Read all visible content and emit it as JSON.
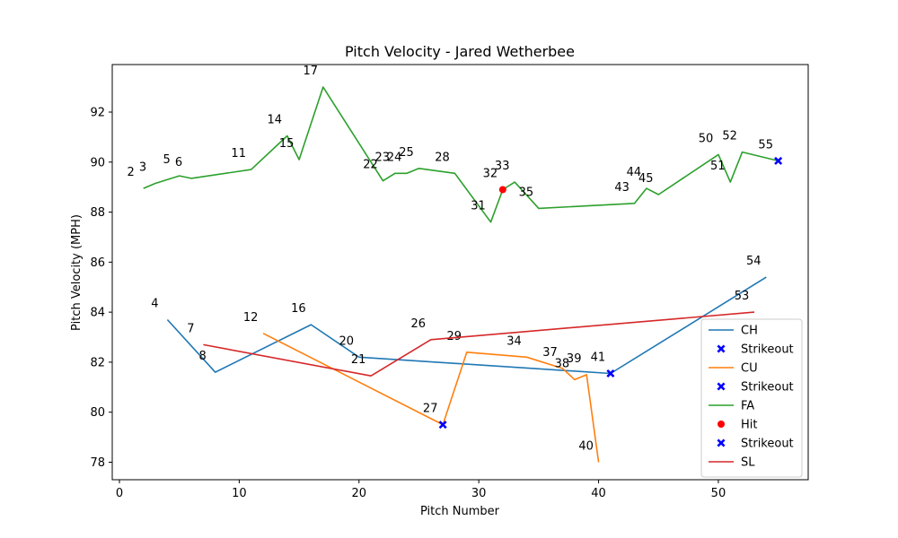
{
  "chart_data": {
    "type": "line",
    "title": "Pitch Velocity - Jared Wetherbee",
    "xlabel": "Pitch Number",
    "ylabel": "Pitch Velocity (MPH)",
    "xlim": [
      -0.6,
      57.5
    ],
    "ylim": [
      77.3,
      93.9
    ],
    "xticks": [
      0,
      10,
      20,
      30,
      40,
      50
    ],
    "yticks": [
      78,
      80,
      82,
      84,
      86,
      88,
      90,
      92
    ],
    "grid": false,
    "legend_position": "lower right",
    "series": [
      {
        "name": "CH",
        "color": "#1f77b4",
        "x": [
          4,
          8,
          16,
          20,
          41,
          54
        ],
        "y": [
          83.7,
          81.6,
          83.5,
          82.2,
          81.55,
          85.4
        ],
        "labels": [
          "4",
          "8",
          "16",
          "20",
          "41",
          "54"
        ]
      },
      {
        "name": "CU",
        "color": "#ff7f0e",
        "x": [
          12,
          27,
          29,
          34,
          37,
          38,
          39,
          40
        ],
        "y": [
          83.15,
          79.5,
          82.4,
          82.2,
          81.75,
          81.3,
          81.5,
          78.0
        ],
        "labels": [
          "12",
          "27",
          "29",
          "34",
          "37",
          "38",
          "39",
          "40"
        ]
      },
      {
        "name": "FA",
        "color": "#2ca02c",
        "x": [
          2,
          3,
          5,
          6,
          11,
          14,
          15,
          17,
          22,
          23,
          24,
          25,
          28,
          31,
          32,
          33,
          35,
          43,
          44,
          45,
          50,
          51,
          52,
          55
        ],
        "y": [
          88.95,
          89.15,
          89.45,
          89.35,
          89.7,
          91.05,
          90.1,
          93.0,
          89.25,
          89.55,
          89.55,
          89.75,
          89.55,
          87.6,
          88.9,
          89.2,
          88.15,
          88.35,
          88.95,
          88.7,
          90.3,
          89.2,
          90.4,
          90.05
        ],
        "labels": [
          "2",
          "3",
          "5",
          "6",
          "11",
          "14",
          "15",
          "17",
          "22",
          "23",
          "24",
          "25",
          "28",
          "31",
          "32",
          "33",
          "35",
          "43",
          "44",
          "45",
          "50",
          "51",
          "52",
          "55"
        ]
      },
      {
        "name": "SL",
        "color": "#d62728",
        "x": [
          7,
          21,
          26,
          53
        ],
        "y": [
          82.7,
          81.45,
          82.9,
          84.0
        ],
        "labels": [
          "7",
          "21",
          "26",
          "53"
        ]
      }
    ],
    "markers": [
      {
        "name": "Strikeout",
        "shape": "x",
        "color": "#0000ff",
        "x": 41,
        "y": 81.55
      },
      {
        "name": "Strikeout",
        "shape": "x",
        "color": "#0000ff",
        "x": 27,
        "y": 79.5
      },
      {
        "name": "Hit",
        "shape": "circle",
        "color": "#ff0000",
        "x": 32,
        "y": 88.9
      },
      {
        "name": "Strikeout",
        "shape": "x",
        "color": "#0000ff",
        "x": 55,
        "y": 90.05
      }
    ],
    "legend": [
      {
        "label": "CH",
        "kind": "line",
        "color": "#1f77b4"
      },
      {
        "label": "Strikeout",
        "kind": "x",
        "color": "#0000ff"
      },
      {
        "label": "CU",
        "kind": "line",
        "color": "#ff7f0e"
      },
      {
        "label": "Strikeout",
        "kind": "x",
        "color": "#0000ff"
      },
      {
        "label": "FA",
        "kind": "line",
        "color": "#2ca02c"
      },
      {
        "label": "Hit",
        "kind": "circle",
        "color": "#ff0000"
      },
      {
        "label": "Strikeout",
        "kind": "x",
        "color": "#0000ff"
      },
      {
        "label": "SL",
        "kind": "line",
        "color": "#d62728"
      }
    ]
  }
}
